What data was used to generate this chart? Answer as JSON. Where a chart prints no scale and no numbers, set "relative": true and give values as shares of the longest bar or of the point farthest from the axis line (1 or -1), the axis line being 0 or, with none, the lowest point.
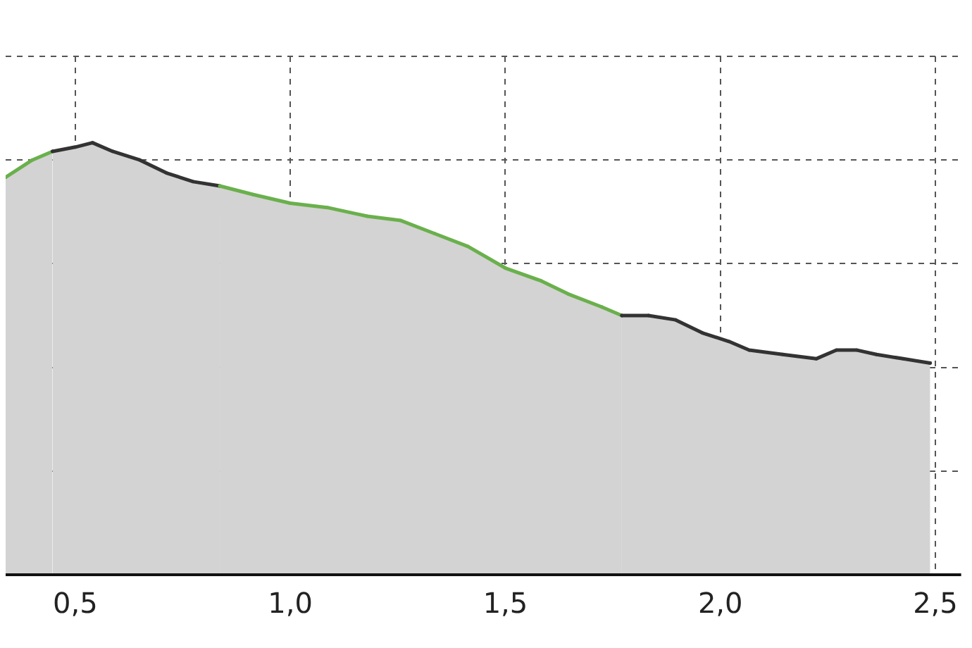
{
  "chart_data": {
    "type": "area",
    "relative": true,
    "grid": true,
    "x": [
      0.338,
      0.4,
      0.447,
      0.5,
      0.54,
      0.587,
      0.65,
      0.712,
      0.774,
      0.836,
      0.914,
      1.0,
      1.086,
      1.179,
      1.257,
      1.335,
      1.413,
      1.5,
      1.584,
      1.646,
      1.724,
      1.771,
      1.833,
      1.896,
      1.958,
      2.02,
      2.067,
      2.145,
      2.223,
      2.27,
      2.318,
      2.363,
      2.425,
      2.488
    ],
    "xlim": [
      0.338,
      2.56
    ],
    "xticks": [
      {
        "value": 0.5,
        "label": "0,5"
      },
      {
        "value": 1.0,
        "label": "1,0"
      },
      {
        "value": 1.5,
        "label": "1,5"
      },
      {
        "value": 2.0,
        "label": "2,0"
      },
      {
        "value": 2.5,
        "label": "2,5"
      }
    ],
    "series": [
      {
        "color": "#d3d3d3",
        "colors": [
          "#6ab04c",
          "#6ab04c",
          "#333333",
          "#333333",
          "#333333",
          "#333333",
          "#333333",
          "#333333",
          "#333333",
          "#6ab04c",
          "#6ab04c",
          "#6ab04c",
          "#6ab04c",
          "#6ab04c",
          "#6ab04c",
          "#6ab04c",
          "#6ab04c",
          "#6ab04c",
          "#6ab04c",
          "#6ab04c",
          "#6ab04c",
          "#333333",
          "#333333",
          "#333333",
          "#333333",
          "#333333",
          "#333333",
          "#333333",
          "#333333",
          "#333333",
          "#333333",
          "#333333",
          "#333333",
          "#333333"
        ],
        "values": [
          0.92,
          0.96,
          0.98,
          0.99,
          1.0,
          0.98,
          0.96,
          0.93,
          0.91,
          0.9,
          0.88,
          0.86,
          0.85,
          0.83,
          0.82,
          0.79,
          0.76,
          0.71,
          0.68,
          0.65,
          0.62,
          0.6,
          0.6,
          0.59,
          0.56,
          0.54,
          0.52,
          0.51,
          0.5,
          0.52,
          0.52,
          0.51,
          0.5,
          0.49
        ]
      }
    ]
  }
}
